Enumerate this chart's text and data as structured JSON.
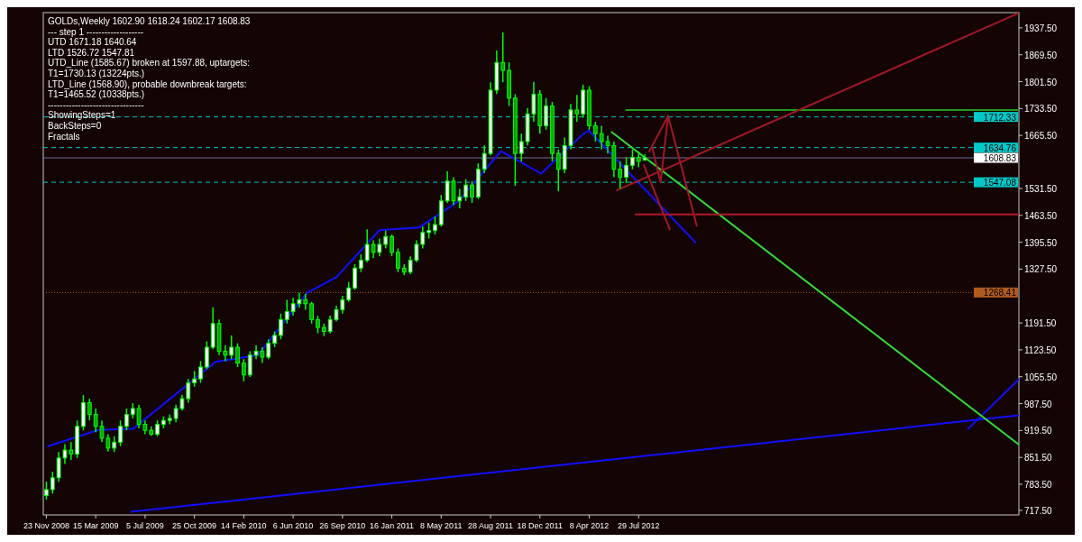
{
  "chart_data": {
    "type": "candlestick",
    "title": "GOLDs,Weekly  1602.90 1618.24 1602.17 1608.83",
    "annotations": [
      "---   step 1   -------------------",
      "UTD 1671.18  1640.64",
      "LTD  1526.72  1547.81",
      "UTD_Line (1585.67) broken at 1597.88, uptargets:",
      "T1=1730.13 (13224pts.)",
      "LTD_Line (1568.90), probable downbreak targets:",
      "T1=1465.52 (10338pts.)",
      "--------------------------------",
      "ShowingSteps=1",
      "BackSteps=0",
      "Fractals"
    ],
    "color": "#00ff00",
    "x": [
      "2008-11-23",
      "2008-12-07",
      "2008-12-21",
      "2009-01-04",
      "2009-01-18",
      "2009-02-01",
      "2009-02-15",
      "2009-03-01",
      "2009-03-15",
      "2009-03-29",
      "2009-04-12",
      "2009-04-26",
      "2009-05-10",
      "2009-05-24",
      "2009-06-07",
      "2009-06-21",
      "2009-07-05",
      "2009-07-19",
      "2009-08-02",
      "2009-08-16",
      "2009-08-30",
      "2009-09-13",
      "2009-09-27",
      "2009-10-11",
      "2009-10-25",
      "2009-11-08",
      "2009-11-22",
      "2009-12-06",
      "2009-12-20",
      "2010-01-03",
      "2010-01-17",
      "2010-01-31",
      "2010-02-14",
      "2010-02-28",
      "2010-03-14",
      "2010-03-28",
      "2010-04-11",
      "2010-04-25",
      "2010-05-09",
      "2010-05-23",
      "2010-06-06",
      "2010-06-20",
      "2010-07-04",
      "2010-07-18",
      "2010-08-01",
      "2010-08-15",
      "2010-08-29",
      "2010-09-12",
      "2010-09-26",
      "2010-10-10",
      "2010-10-24",
      "2010-11-07",
      "2010-11-21",
      "2010-12-05",
      "2010-12-19",
      "2011-01-02",
      "2011-01-16",
      "2011-01-30",
      "2011-02-13",
      "2011-02-27",
      "2011-03-13",
      "2011-03-27",
      "2011-04-10",
      "2011-04-24",
      "2011-05-08",
      "2011-05-22",
      "2011-06-05",
      "2011-06-19",
      "2011-07-03",
      "2011-07-17",
      "2011-07-31",
      "2011-08-14",
      "2011-08-28",
      "2011-09-11",
      "2011-09-25",
      "2011-10-09",
      "2011-10-23",
      "2011-11-06",
      "2011-11-20",
      "2011-12-04",
      "2011-12-18",
      "2012-01-01",
      "2012-01-15",
      "2012-01-29",
      "2012-02-12",
      "2012-02-26",
      "2012-03-11",
      "2012-03-25",
      "2012-04-08",
      "2012-04-22",
      "2012-05-06",
      "2012-05-20",
      "2012-06-03",
      "2012-06-17",
      "2012-07-01",
      "2012-07-15",
      "2012-07-29",
      "2012-08-12"
    ],
    "ohlc": [
      [
        755,
        790,
        745,
        770
      ],
      [
        770,
        815,
        760,
        800
      ],
      [
        800,
        865,
        790,
        850
      ],
      [
        850,
        885,
        835,
        870
      ],
      [
        870,
        890,
        845,
        860
      ],
      [
        860,
        945,
        850,
        930
      ],
      [
        930,
        1009,
        920,
        990
      ],
      [
        990,
        1000,
        945,
        960
      ],
      [
        960,
        975,
        915,
        930
      ],
      [
        930,
        945,
        890,
        900
      ],
      [
        900,
        910,
        866,
        875
      ],
      [
        875,
        905,
        865,
        890
      ],
      [
        890,
        945,
        880,
        930
      ],
      [
        930,
        975,
        920,
        960
      ],
      [
        960,
        989,
        950,
        975
      ],
      [
        975,
        985,
        925,
        935
      ],
      [
        935,
        945,
        910,
        920
      ],
      [
        920,
        930,
        906,
        910
      ],
      [
        910,
        945,
        905,
        935
      ],
      [
        935,
        955,
        925,
        945
      ],
      [
        945,
        960,
        935,
        950
      ],
      [
        950,
        985,
        940,
        975
      ],
      [
        975,
        1010,
        970,
        1000
      ],
      [
        1000,
        1050,
        990,
        1040
      ],
      [
        1040,
        1070,
        1030,
        1050
      ],
      [
        1050,
        1095,
        1040,
        1080
      ],
      [
        1080,
        1145,
        1075,
        1130
      ],
      [
        1130,
        1231,
        1125,
        1190
      ],
      [
        1190,
        1200,
        1110,
        1120
      ],
      [
        1120,
        1135,
        1095,
        1110
      ],
      [
        1110,
        1160,
        1100,
        1130
      ],
      [
        1130,
        1140,
        1080,
        1090
      ],
      [
        1090,
        1100,
        1044,
        1060
      ],
      [
        1060,
        1120,
        1055,
        1110
      ],
      [
        1110,
        1135,
        1100,
        1120
      ],
      [
        1120,
        1130,
        1090,
        1105
      ],
      [
        1105,
        1150,
        1100,
        1140
      ],
      [
        1140,
        1170,
        1130,
        1160
      ],
      [
        1160,
        1215,
        1150,
        1200
      ],
      [
        1200,
        1250,
        1190,
        1220
      ],
      [
        1220,
        1255,
        1210,
        1240
      ],
      [
        1240,
        1268,
        1230,
        1250
      ],
      [
        1250,
        1265,
        1225,
        1240
      ],
      [
        1240,
        1245,
        1190,
        1200
      ],
      [
        1200,
        1210,
        1165,
        1180
      ],
      [
        1180,
        1190,
        1158,
        1170
      ],
      [
        1170,
        1210,
        1165,
        1200
      ],
      [
        1200,
        1235,
        1195,
        1225
      ],
      [
        1225,
        1260,
        1215,
        1250
      ],
      [
        1250,
        1295,
        1245,
        1280
      ],
      [
        1280,
        1340,
        1275,
        1330
      ],
      [
        1330,
        1365,
        1320,
        1350
      ],
      [
        1350,
        1428,
        1345,
        1390
      ],
      [
        1390,
        1400,
        1355,
        1370
      ],
      [
        1370,
        1405,
        1360,
        1390
      ],
      [
        1390,
        1425,
        1380,
        1410
      ],
      [
        1410,
        1415,
        1360,
        1370
      ],
      [
        1370,
        1380,
        1320,
        1330
      ],
      [
        1330,
        1340,
        1312,
        1320
      ],
      [
        1320,
        1360,
        1315,
        1350
      ],
      [
        1350,
        1400,
        1345,
        1390
      ],
      [
        1390,
        1435,
        1380,
        1420
      ],
      [
        1420,
        1445,
        1405,
        1425
      ],
      [
        1425,
        1460,
        1415,
        1440
      ],
      [
        1440,
        1515,
        1435,
        1500
      ],
      [
        1500,
        1575,
        1495,
        1550
      ],
      [
        1550,
        1560,
        1490,
        1500
      ],
      [
        1500,
        1530,
        1481,
        1510
      ],
      [
        1510,
        1555,
        1500,
        1540
      ],
      [
        1540,
        1550,
        1495,
        1510
      ],
      [
        1510,
        1595,
        1505,
        1580
      ],
      [
        1580,
        1640,
        1570,
        1620
      ],
      [
        1620,
        1800,
        1615,
        1780
      ],
      [
        1780,
        1880,
        1770,
        1850
      ],
      [
        1850,
        1926,
        1800,
        1830
      ],
      [
        1830,
        1850,
        1740,
        1760
      ],
      [
        1760,
        1770,
        1538,
        1620
      ],
      [
        1620,
        1670,
        1600,
        1650
      ],
      [
        1650,
        1735,
        1640,
        1720
      ],
      [
        1720,
        1801,
        1700,
        1770
      ],
      [
        1770,
        1780,
        1670,
        1690
      ],
      [
        1690,
        1760,
        1680,
        1740
      ],
      [
        1740,
        1750,
        1600,
        1620
      ],
      [
        1620,
        1630,
        1524,
        1580
      ],
      [
        1580,
        1660,
        1570,
        1640
      ],
      [
        1640,
        1745,
        1630,
        1730
      ],
      [
        1730,
        1768,
        1700,
        1720
      ],
      [
        1720,
        1794,
        1710,
        1780
      ],
      [
        1780,
        1790,
        1680,
        1690
      ],
      [
        1690,
        1700,
        1650,
        1670
      ],
      [
        1670,
        1690,
        1630,
        1650
      ],
      [
        1650,
        1665,
        1620,
        1640
      ],
      [
        1640,
        1650,
        1560,
        1580
      ],
      [
        1580,
        1600,
        1531,
        1560
      ],
      [
        1560,
        1610,
        1545,
        1590
      ],
      [
        1590,
        1630,
        1580,
        1610
      ],
      [
        1610,
        1625,
        1585,
        1600
      ],
      [
        1602.9,
        1618.24,
        1602.17,
        1608.83
      ]
    ],
    "series": [
      {
        "type": "line",
        "color": "#1010ff",
        "x": [
          "2008-11-27",
          "2009-03-21",
          "2009-06-08",
          "2009-12-12",
          "2010-03-18",
          "2010-07-08",
          "2010-09-12",
          "2010-12-19",
          "2011-03-19",
          "2011-06-15",
          "2011-09-21",
          "2011-12-21",
          "2012-03-25",
          "2012-04-07",
          "2012-12-05"
        ],
        "values": [
          880,
          921,
          924,
          1093,
          1110,
          1268,
          1307,
          1426,
          1433,
          1498,
          1626,
          1569,
          1669,
          1678,
          1395
        ]
      },
      {
        "type": "line",
        "color": "#1010ff",
        "x": [
          "2009-06-03",
          "2014-12-09"
        ],
        "values": [
          714,
          958
        ]
      },
      {
        "type": "line",
        "color": "#1010ff",
        "x": [
          "2014-08-16",
          "2014-12-09"
        ],
        "values": [
          924,
          1049
        ]
      },
      {
        "type": "line",
        "color": "#33dd33",
        "x": [
          "2012-05-29",
          "2014-12-09"
        ],
        "values": [
          1674,
          884
        ]
      },
      {
        "type": "line",
        "color": "#1f9a1f",
        "x": [
          "2012-07-01",
          "2014-12-09"
        ],
        "values": [
          1730,
          1730
        ]
      },
      {
        "type": "line",
        "color": "#b01828",
        "x": [
          "2012-07-22",
          "2014-12-09"
        ],
        "values": [
          1466,
          1466
        ]
      },
      {
        "type": "line",
        "color": "#a01828",
        "x": [
          "2012-06-10",
          "2014-12-09"
        ],
        "values": [
          1527,
          1975
        ]
      },
      {
        "type": "line",
        "color": "#a01828",
        "x": [
          "2012-08-29",
          "2012-09-17",
          "2012-10-04",
          "2012-12-08"
        ],
        "values": [
          1634,
          1547,
          1715,
          1437
        ]
      },
      {
        "type": "line",
        "color": "#a01828",
        "x": [
          "2012-08-22",
          "2012-10-04"
        ],
        "values": [
          1625,
          1715
        ]
      },
      {
        "type": "line",
        "color": "#a01828",
        "x": [
          "2012-08-10",
          "2012-10-08"
        ],
        "values": [
          1590,
          1428
        ]
      }
    ],
    "ref_lines": [
      {
        "axis": "y",
        "value": 1712.33,
        "label": "1712.33",
        "color": "#00c8c8",
        "line_style": "dashed"
      },
      {
        "axis": "y",
        "value": 1634.76,
        "label": "1634.76",
        "color": "#00c8c8",
        "line_style": "dashed"
      },
      {
        "axis": "y",
        "value": 1608.83,
        "label": "1608.83",
        "color": "#7070a0",
        "line_style": "solid"
      },
      {
        "axis": "y",
        "value": 1547.08,
        "label": "1547.08",
        "color": "#00c8c8",
        "line_style": "dashed"
      },
      {
        "axis": "y",
        "value": 1268.41,
        "label": "1268.41",
        "color": "#b05a20",
        "line_style": "dotted"
      }
    ],
    "xlim": [
      "2008-11-16",
      "2014-12-09"
    ],
    "xticks": [
      {
        "value": "2008-11-23",
        "label": "23 Nov 2008"
      },
      {
        "value": "2009-03-15",
        "label": "15 Mar 2009"
      },
      {
        "value": "2009-07-05",
        "label": "5 Jul 2009"
      },
      {
        "value": "2009-10-25",
        "label": "25 Oct 2009"
      },
      {
        "value": "2010-02-14",
        "label": "14 Feb 2010"
      },
      {
        "value": "2010-06-06",
        "label": "6 Jun 2010"
      },
      {
        "value": "2010-09-26",
        "label": "26 Sep 2010"
      },
      {
        "value": "2011-01-16",
        "label": "16 Jan 2011"
      },
      {
        "value": "2011-05-08",
        "label": "8 May 2011"
      },
      {
        "value": "2011-08-28",
        "label": "28 Aug 2011"
      },
      {
        "value": "2011-12-18",
        "label": "18 Dec 2011"
      },
      {
        "value": "2012-04-08",
        "label": "8 Apr 2012"
      },
      {
        "value": "2012-07-29",
        "label": "29 Jul 2012"
      }
    ],
    "ylim": [
      706,
      1976
    ],
    "yticks": [
      {
        "value": 717.5,
        "label": "717.50"
      },
      {
        "value": 783.5,
        "label": "783.50"
      },
      {
        "value": 851.5,
        "label": "851.50"
      },
      {
        "value": 919.5,
        "label": "919.50"
      },
      {
        "value": 987.5,
        "label": "987.50"
      },
      {
        "value": 1055.5,
        "label": "1055.50"
      },
      {
        "value": 1123.5,
        "label": "1123.50"
      },
      {
        "value": 1191.5,
        "label": "1191.50"
      },
      {
        "value": 1327.5,
        "label": "1327.50"
      },
      {
        "value": 1395.5,
        "label": "1395.50"
      },
      {
        "value": 1463.5,
        "label": "1463.50"
      },
      {
        "value": 1531.5,
        "label": "1531.50"
      },
      {
        "value": 1665.5,
        "label": "1665.50"
      },
      {
        "value": 1733.5,
        "label": "1733.50"
      },
      {
        "value": 1801.5,
        "label": "1801.50"
      },
      {
        "value": 1869.5,
        "label": "1869.50"
      },
      {
        "value": 1937.5,
        "label": "1937.50"
      }
    ],
    "grid": false
  }
}
